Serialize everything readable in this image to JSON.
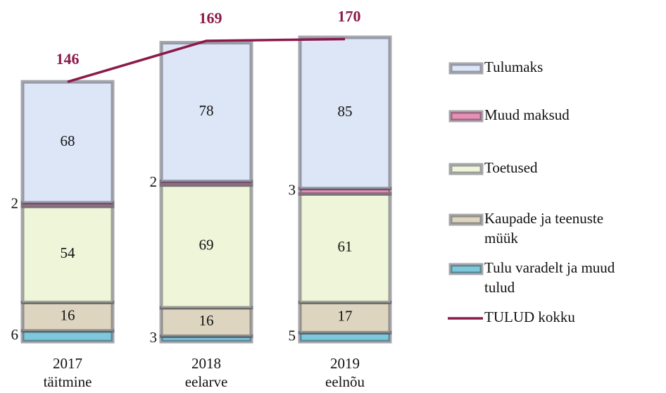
{
  "chart_data": {
    "type": "bar",
    "categories": [
      "2017 täitmine",
      "2018 eelarve",
      "2019 eelnõu"
    ],
    "ylim": [
      0,
      190
    ],
    "series": [
      {
        "name": "Tulu varadelt ja muud tulud",
        "color": "#7ec8dc",
        "values": [
          6,
          3,
          5
        ]
      },
      {
        "name": "Kaupade ja teenuste müük",
        "color": "#ddd5c0",
        "values": [
          16,
          16,
          17
        ]
      },
      {
        "name": "Toetused",
        "color": "#eef5d9",
        "values": [
          54,
          69,
          61
        ]
      },
      {
        "name": "Muud maksud",
        "color": "#e88fb5",
        "values": [
          2,
          2,
          3
        ]
      },
      {
        "name": "Tulumaks",
        "color": "#dce6f7",
        "values": [
          68,
          78,
          85
        ]
      }
    ],
    "line": {
      "name": "TULUD kokku",
      "color": "#8b1a4a",
      "values": [
        146,
        169,
        170
      ]
    },
    "legend": "right"
  }
}
